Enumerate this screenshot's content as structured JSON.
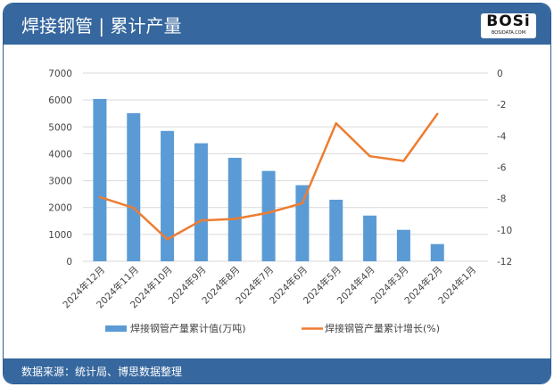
{
  "header": {
    "title": "焊接钢管 | 累计产量",
    "logo_text": "BOSi",
    "logo_sub": "BOSIDATA.COM"
  },
  "footer": {
    "source": "数据来源：统计局、博思数据整理"
  },
  "colors": {
    "frame": "#36679e",
    "bar": "#5b9bd5",
    "line": "#ed7d31"
  },
  "chart_data": {
    "type": "bar+line",
    "categories": [
      "2024年12月",
      "2024年11月",
      "2024年10月",
      "2024年9月",
      "2024年8月",
      "2024年7月",
      "2024年6月",
      "2024年5月",
      "2024年4月",
      "2024年3月",
      "2024年2月",
      "2024年1月"
    ],
    "series": [
      {
        "name": "焊接钢管产量累计值(万吨)",
        "type": "bar",
        "axis": "left",
        "values": [
          6040,
          5510,
          4850,
          4390,
          3850,
          3360,
          2830,
          2290,
          1700,
          1170,
          640,
          null
        ]
      },
      {
        "name": "焊接钢管产量累计增长(%)",
        "type": "line",
        "axis": "right",
        "values": [
          -7.9,
          -8.6,
          -10.6,
          -9.4,
          -9.3,
          -8.9,
          -8.3,
          -3.2,
          -5.3,
          -5.6,
          -2.6,
          null
        ]
      }
    ],
    "y_left": {
      "min": 0,
      "max": 7000,
      "ticks": [
        "0",
        "1000",
        "2000",
        "3000",
        "4000",
        "5000",
        "6000",
        "7000"
      ]
    },
    "y_right": {
      "min": -12,
      "max": 0,
      "ticks": [
        "-12",
        "-10",
        "-8",
        "-6",
        "-4",
        "-2",
        "0"
      ]
    },
    "grid": true,
    "legend": "bottom"
  }
}
